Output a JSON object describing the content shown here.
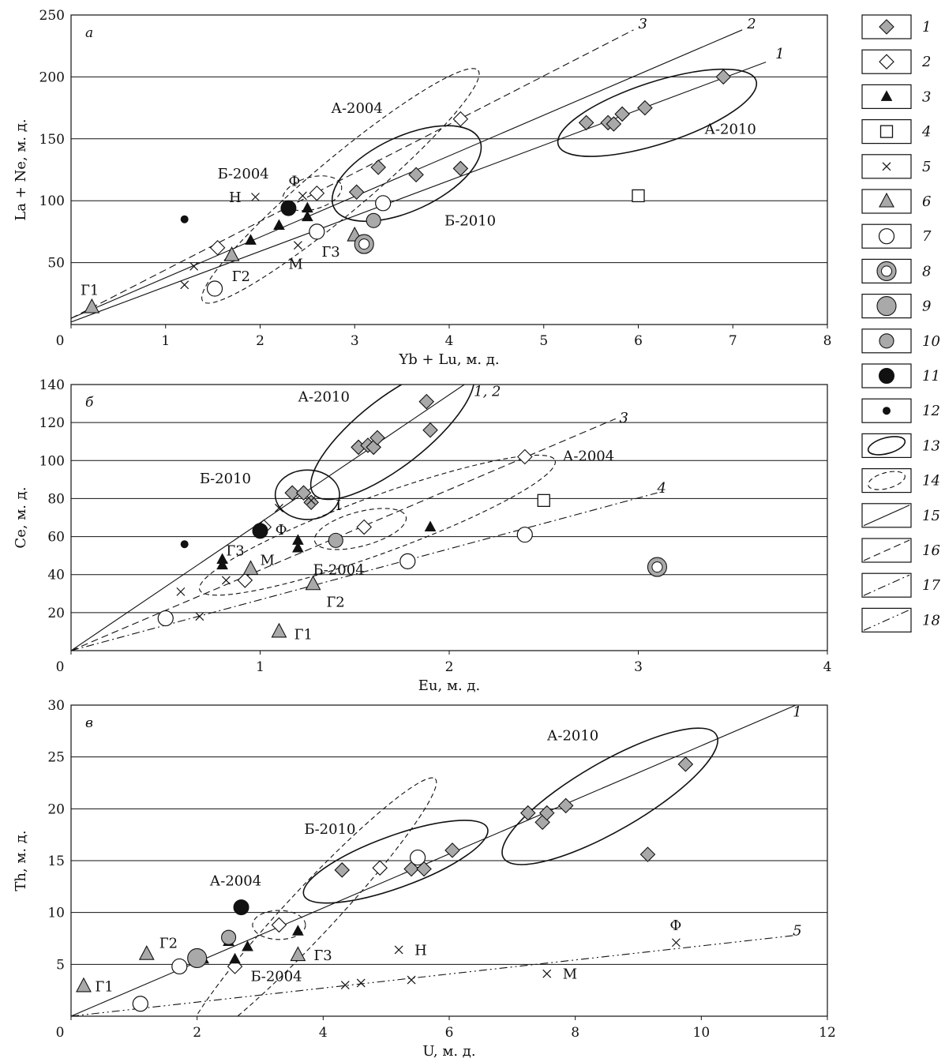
{
  "chart_data": [
    {
      "type": "scatter",
      "panel": "а",
      "xlabel": "Yb + Lu, м. д.",
      "ylabel": "La + Ne, м. д.",
      "xlim": [
        0,
        8
      ],
      "ylim": [
        0,
        250
      ],
      "xticks": [
        "0",
        "1",
        "2",
        "3",
        "4",
        "5",
        "6",
        "7",
        "8"
      ],
      "yticks": [
        "50",
        "100",
        "150",
        "200",
        "250"
      ],
      "grid": "horizontal",
      "points": [
        {
          "s": 1,
          "x": 5.45,
          "y": 163
        },
        {
          "s": 1,
          "x": 5.68,
          "y": 163
        },
        {
          "s": 1,
          "x": 5.74,
          "y": 162
        },
        {
          "s": 1,
          "x": 5.83,
          "y": 170
        },
        {
          "s": 1,
          "x": 6.07,
          "y": 175
        },
        {
          "s": 1,
          "x": 6.9,
          "y": 200
        },
        {
          "s": 1,
          "x": 3.02,
          "y": 107
        },
        {
          "s": 1,
          "x": 3.25,
          "y": 127
        },
        {
          "s": 1,
          "x": 3.65,
          "y": 121
        },
        {
          "s": 1,
          "x": 4.12,
          "y": 126
        },
        {
          "s": 2,
          "x": 4.12,
          "y": 166
        },
        {
          "s": 2,
          "x": 2.6,
          "y": 106
        },
        {
          "s": 2,
          "x": 1.55,
          "y": 62
        },
        {
          "s": 3,
          "x": 1.9,
          "y": 68
        },
        {
          "s": 3,
          "x": 2.2,
          "y": 80
        },
        {
          "s": 3,
          "x": 2.5,
          "y": 87
        },
        {
          "s": 3,
          "x": 2.5,
          "y": 94
        },
        {
          "s": 4,
          "x": 6.0,
          "y": 104
        },
        {
          "s": 5,
          "x": 1.2,
          "y": 32
        },
        {
          "s": 5,
          "x": 1.3,
          "y": 47
        },
        {
          "s": 5,
          "x": 1.95,
          "y": 103
        },
        {
          "s": 5,
          "x": 2.4,
          "y": 64
        },
        {
          "s": 5,
          "x": 2.45,
          "y": 104
        },
        {
          "s": 6,
          "x": 0.22,
          "y": 14
        },
        {
          "s": 6,
          "x": 1.7,
          "y": 56
        },
        {
          "s": 6,
          "x": 3.0,
          "y": 72
        },
        {
          "s": 7,
          "x": 1.52,
          "y": 29
        },
        {
          "s": 7,
          "x": 2.6,
          "y": 75
        },
        {
          "s": 7,
          "x": 3.3,
          "y": 98
        },
        {
          "s": 8,
          "x": 3.1,
          "y": 65
        },
        {
          "s": 10,
          "x": 3.2,
          "y": 84
        },
        {
          "s": 11,
          "x": 2.3,
          "y": 94
        },
        {
          "s": 12,
          "x": 1.2,
          "y": 85
        }
      ],
      "lines": [
        {
          "id": "1",
          "style": 15,
          "x1": 0,
          "y1": 2,
          "x2": 7.35,
          "y2": 212
        },
        {
          "id": "2",
          "style": 15,
          "x1": 0,
          "y1": 5,
          "x2": 7.1,
          "y2": 238
        },
        {
          "id": "3",
          "style": 16,
          "x1": 0,
          "y1": 5,
          "x2": 5.95,
          "y2": 238
        }
      ],
      "ellipses": [
        {
          "style": 13,
          "cx": 6.2,
          "cy": 171,
          "rx": 1.1,
          "ry": 25,
          "angle": -18
        },
        {
          "style": 13,
          "cx": 3.55,
          "cy": 122,
          "rx": 0.85,
          "ry": 30,
          "angle": -25
        },
        {
          "style": 14,
          "cx": 2.85,
          "cy": 112,
          "rx": 1.9,
          "ry": 22,
          "angle": -40
        },
        {
          "style": 14,
          "cx": 2.55,
          "cy": 106,
          "rx": 0.32,
          "ry": 13,
          "angle": -15
        }
      ],
      "labels": [
        {
          "text": "А-2004",
          "x": 2.75,
          "y": 171
        },
        {
          "text": "А-2010",
          "x": 6.7,
          "y": 154
        },
        {
          "text": "Б-2004",
          "x": 1.55,
          "y": 118
        },
        {
          "text": "Б-2010",
          "x": 3.95,
          "y": 80
        },
        {
          "text": "Ф",
          "x": 2.3,
          "y": 112
        },
        {
          "text": "Н",
          "x": 1.67,
          "y": 99
        },
        {
          "text": "М",
          "x": 2.3,
          "y": 45
        },
        {
          "text": "Г1",
          "x": 0.1,
          "y": 24
        },
        {
          "text": "Г2",
          "x": 1.7,
          "y": 35
        },
        {
          "text": "Г3",
          "x": 2.65,
          "y": 55
        }
      ],
      "line_labels": [
        {
          "text": "1",
          "x": 7.45,
          "y": 215
        },
        {
          "text": "2",
          "x": 7.15,
          "y": 239
        },
        {
          "text": "3",
          "x": 6.0,
          "y": 239
        }
      ]
    },
    {
      "type": "scatter",
      "panel": "б",
      "xlabel": "Eu, м. д.",
      "ylabel": "Ce, м. д.",
      "xlim": [
        0,
        4
      ],
      "ylim": [
        0,
        140
      ],
      "xticks": [
        "0",
        "1",
        "2",
        "3",
        "4"
      ],
      "yticks": [
        "20",
        "40",
        "60",
        "80",
        "100",
        "120",
        "140"
      ],
      "grid": "horizontal",
      "points": [
        {
          "s": 1,
          "x": 1.52,
          "y": 107
        },
        {
          "s": 1,
          "x": 1.57,
          "y": 108
        },
        {
          "s": 1,
          "x": 1.6,
          "y": 107
        },
        {
          "s": 1,
          "x": 1.62,
          "y": 112
        },
        {
          "s": 1,
          "x": 1.88,
          "y": 131
        },
        {
          "s": 1,
          "x": 1.9,
          "y": 116
        },
        {
          "s": 1,
          "x": 1.17,
          "y": 83
        },
        {
          "s": 1,
          "x": 1.23,
          "y": 83
        },
        {
          "s": 1,
          "x": 1.27,
          "y": 78
        },
        {
          "s": 2,
          "x": 2.4,
          "y": 102
        },
        {
          "s": 2,
          "x": 1.55,
          "y": 65
        },
        {
          "s": 2,
          "x": 0.92,
          "y": 37
        },
        {
          "s": 2,
          "x": 1.02,
          "y": 65
        },
        {
          "s": 3,
          "x": 0.8,
          "y": 48
        },
        {
          "s": 3,
          "x": 0.8,
          "y": 45
        },
        {
          "s": 3,
          "x": 1.2,
          "y": 58
        },
        {
          "s": 3,
          "x": 1.2,
          "y": 54
        },
        {
          "s": 3,
          "x": 1.9,
          "y": 65
        },
        {
          "s": 4,
          "x": 2.5,
          "y": 79
        },
        {
          "s": 5,
          "x": 0.58,
          "y": 31
        },
        {
          "s": 5,
          "x": 0.68,
          "y": 18
        },
        {
          "s": 5,
          "x": 0.82,
          "y": 37
        },
        {
          "s": 5,
          "x": 1.1,
          "y": 75
        },
        {
          "s": 5,
          "x": 1.27,
          "y": 79
        },
        {
          "s": 6,
          "x": 1.1,
          "y": 10
        },
        {
          "s": 6,
          "x": 1.28,
          "y": 35
        },
        {
          "s": 6,
          "x": 0.95,
          "y": 43
        },
        {
          "s": 7,
          "x": 0.5,
          "y": 17
        },
        {
          "s": 7,
          "x": 1.78,
          "y": 47
        },
        {
          "s": 7,
          "x": 2.4,
          "y": 61
        },
        {
          "s": 8,
          "x": 3.1,
          "y": 44
        },
        {
          "s": 10,
          "x": 1.4,
          "y": 58
        },
        {
          "s": 11,
          "x": 1.0,
          "y": 63
        },
        {
          "s": 12,
          "x": 0.6,
          "y": 56
        }
      ],
      "lines": [
        {
          "id": "1, 2",
          "style": 15,
          "x1": 0,
          "y1": 0,
          "x2": 2.08,
          "y2": 140
        },
        {
          "id": "3",
          "style": 16,
          "x1": 0,
          "y1": 0,
          "x2": 2.88,
          "y2": 122
        },
        {
          "id": "4",
          "style": 17,
          "x1": 0,
          "y1": 0,
          "x2": 3.1,
          "y2": 83
        }
      ],
      "ellipses": [
        {
          "style": 13,
          "cx": 1.7,
          "cy": 115,
          "rx": 0.53,
          "ry": 18,
          "angle": -38
        },
        {
          "style": 13,
          "cx": 1.25,
          "cy": 82,
          "rx": 0.17,
          "ry": 13,
          "angle": 0
        },
        {
          "style": 14,
          "cx": 1.62,
          "cy": 66,
          "rx": 1.0,
          "ry": 15,
          "angle": -20
        },
        {
          "style": 14,
          "cx": 1.53,
          "cy": 64,
          "rx": 0.25,
          "ry": 9,
          "angle": -15
        }
      ],
      "labels": [
        {
          "text": "А-2010",
          "x": 1.2,
          "y": 131
        },
        {
          "text": "А-2004",
          "x": 2.6,
          "y": 100
        },
        {
          "text": "Б-2010",
          "x": 0.68,
          "y": 88
        },
        {
          "text": "Б-2004",
          "x": 1.28,
          "y": 40
        },
        {
          "text": "I",
          "x": 1.4,
          "y": 74
        },
        {
          "text": "Ф",
          "x": 1.08,
          "y": 61
        },
        {
          "text": "М",
          "x": 1.0,
          "y": 45
        },
        {
          "text": "Г1",
          "x": 1.18,
          "y": 6
        },
        {
          "text": "Г2",
          "x": 1.35,
          "y": 23
        },
        {
          "text": "Г3",
          "x": 0.82,
          "y": 50
        }
      ],
      "line_labels": [
        {
          "text": "1, 2",
          "x": 2.13,
          "y": 134
        },
        {
          "text": "3",
          "x": 2.9,
          "y": 120
        },
        {
          "text": "4",
          "x": 3.1,
          "y": 83
        }
      ]
    },
    {
      "type": "scatter",
      "panel": "в",
      "xlabel": "U, м. д.",
      "ylabel": "Th, м. д.",
      "xlim": [
        0,
        12
      ],
      "ylim": [
        0,
        30
      ],
      "xticks": [
        "0",
        "2",
        "4",
        "6",
        "8",
        "10",
        "12"
      ],
      "yticks": [
        "5",
        "10",
        "15",
        "20",
        "25",
        "30"
      ],
      "grid": "horizontal",
      "points": [
        {
          "s": 1,
          "x": 7.25,
          "y": 19.6
        },
        {
          "s": 1,
          "x": 7.48,
          "y": 18.7
        },
        {
          "s": 1,
          "x": 7.55,
          "y": 19.6
        },
        {
          "s": 1,
          "x": 7.85,
          "y": 20.3
        },
        {
          "s": 1,
          "x": 9.75,
          "y": 24.3
        },
        {
          "s": 1,
          "x": 9.15,
          "y": 15.6
        },
        {
          "s": 1,
          "x": 4.3,
          "y": 14.1
        },
        {
          "s": 1,
          "x": 5.4,
          "y": 14.2
        },
        {
          "s": 1,
          "x": 5.6,
          "y": 14.2
        },
        {
          "s": 1,
          "x": 6.05,
          "y": 16.0
        },
        {
          "s": 2,
          "x": 4.9,
          "y": 14.3
        },
        {
          "s": 2,
          "x": 3.3,
          "y": 8.8
        },
        {
          "s": 2,
          "x": 2.6,
          "y": 4.8
        },
        {
          "s": 3,
          "x": 2.1,
          "y": 5.5
        },
        {
          "s": 3,
          "x": 2.5,
          "y": 7.2
        },
        {
          "s": 3,
          "x": 2.6,
          "y": 5.5
        },
        {
          "s": 3,
          "x": 2.8,
          "y": 6.7
        },
        {
          "s": 3,
          "x": 3.6,
          "y": 8.2
        },
        {
          "s": 5,
          "x": 5.2,
          "y": 6.4
        },
        {
          "s": 5,
          "x": 7.55,
          "y": 4.1
        },
        {
          "s": 5,
          "x": 9.6,
          "y": 7.1
        },
        {
          "s": 5,
          "x": 4.35,
          "y": 3.0
        },
        {
          "s": 5,
          "x": 4.6,
          "y": 3.2
        },
        {
          "s": 5,
          "x": 5.4,
          "y": 3.5
        },
        {
          "s": 6,
          "x": 0.2,
          "y": 2.9
        },
        {
          "s": 6,
          "x": 1.2,
          "y": 6.0
        },
        {
          "s": 6,
          "x": 3.6,
          "y": 5.9
        },
        {
          "s": 7,
          "x": 1.1,
          "y": 1.2
        },
        {
          "s": 7,
          "x": 1.72,
          "y": 4.8
        },
        {
          "s": 7,
          "x": 5.5,
          "y": 15.3
        },
        {
          "s": 9,
          "x": 2.0,
          "y": 5.6
        },
        {
          "s": 10,
          "x": 2.5,
          "y": 7.6
        },
        {
          "s": 11,
          "x": 2.7,
          "y": 10.5
        }
      ],
      "lines": [
        {
          "id": "1",
          "style": 15,
          "x1": 0,
          "y1": 0,
          "x2": 11.5,
          "y2": 30
        },
        {
          "id": "5",
          "style": 18,
          "x1": 0,
          "y1": 0,
          "x2": 11.5,
          "y2": 7.8
        }
      ],
      "ellipses": [
        {
          "style": 13,
          "cx": 8.55,
          "cy": 21.2,
          "rx": 1.95,
          "ry": 3.3,
          "angle": -30
        },
        {
          "style": 13,
          "cx": 5.15,
          "cy": 14.9,
          "rx": 1.55,
          "ry": 2.5,
          "angle": -20
        },
        {
          "style": 14,
          "cx": 3.8,
          "cy": 10.0,
          "rx": 2.9,
          "ry": 2.3,
          "angle": -47
        },
        {
          "style": 14,
          "cx": 3.3,
          "cy": 8.8,
          "rx": 0.42,
          "ry": 1.4,
          "angle": 0
        }
      ],
      "labels": [
        {
          "text": "А-2010",
          "x": 7.55,
          "y": 26.6
        },
        {
          "text": "А-2004",
          "x": 2.2,
          "y": 12.6
        },
        {
          "text": "Б-2010",
          "x": 3.7,
          "y": 17.6
        },
        {
          "text": "Б-2004",
          "x": 2.85,
          "y": 3.4
        },
        {
          "text": "Ф",
          "x": 9.5,
          "y": 8.3
        },
        {
          "text": "Н",
          "x": 5.45,
          "y": 5.9
        },
        {
          "text": "М",
          "x": 7.8,
          "y": 3.6
        },
        {
          "text": "Г1",
          "x": 0.38,
          "y": 2.4
        },
        {
          "text": "Г2",
          "x": 1.4,
          "y": 6.6
        },
        {
          "text": "Г3",
          "x": 3.85,
          "y": 5.4
        }
      ],
      "line_labels": [
        {
          "text": "1",
          "x": 11.45,
          "y": 28.9
        },
        {
          "text": "5",
          "x": 11.45,
          "y": 7.8
        }
      ]
    }
  ],
  "legend": {
    "placement": "right",
    "items": [
      {
        "num": "1",
        "marker": "diamond-gray"
      },
      {
        "num": "2",
        "marker": "diamond-open"
      },
      {
        "num": "3",
        "marker": "triangle-black"
      },
      {
        "num": "4",
        "marker": "square-open"
      },
      {
        "num": "5",
        "marker": "cross"
      },
      {
        "num": "6",
        "marker": "triangle-gray"
      },
      {
        "num": "7",
        "marker": "circle-open-large"
      },
      {
        "num": "8",
        "marker": "circle-open-small"
      },
      {
        "num": "9",
        "marker": "circle-gray-large"
      },
      {
        "num": "10",
        "marker": "circle-gray"
      },
      {
        "num": "11",
        "marker": "circle-black"
      },
      {
        "num": "12",
        "marker": "dot-black"
      },
      {
        "num": "13",
        "marker": "ellipse-solid"
      },
      {
        "num": "14",
        "marker": "ellipse-dashed"
      },
      {
        "num": "15",
        "marker": "line-solid"
      },
      {
        "num": "16",
        "marker": "line-dashed"
      },
      {
        "num": "17",
        "marker": "line-dashdot"
      },
      {
        "num": "18",
        "marker": "line-dashdotdot"
      }
    ]
  },
  "colors": {
    "gray_fill": "#a9a9a9",
    "ink": "#111111"
  }
}
